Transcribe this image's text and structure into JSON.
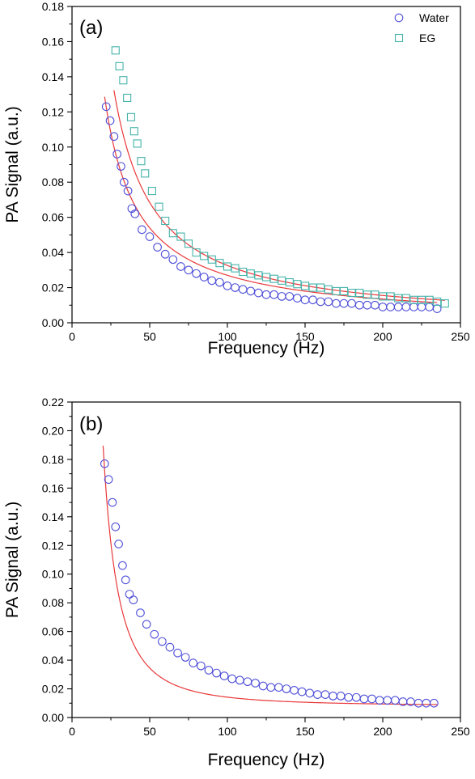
{
  "colors": {
    "water": "#4f4fd8",
    "eg": "#45b3a9",
    "fit": "#e8383a",
    "axis": "#000000"
  },
  "chart_data": [
    {
      "type": "scatter",
      "panel_label": "(a)",
      "xlabel": "Frequency (Hz)",
      "ylabel": "PA Signal (a.u.)",
      "xlim": [
        0,
        250
      ],
      "ylim": [
        0,
        0.18
      ],
      "xticks": [
        "0",
        "50",
        "100",
        "150",
        "200",
        "250"
      ],
      "yticks": [
        "0.00",
        "0.02",
        "0.04",
        "0.06",
        "0.08",
        "0.10",
        "0.12",
        "0.14",
        "0.16",
        "0.18"
      ],
      "grid": false,
      "legend_position": "top-right",
      "series": [
        {
          "name": "Water",
          "marker": "circle",
          "x": [
            22,
            24.5,
            27,
            29,
            31.5,
            33.5,
            36,
            38.5,
            40.5,
            45,
            50,
            55,
            60,
            65,
            70,
            75,
            80,
            85,
            90,
            95,
            100,
            105,
            110,
            115,
            120,
            125,
            130,
            135,
            140,
            145,
            150,
            155,
            160,
            165,
            170,
            175,
            180,
            185,
            190,
            195,
            200,
            205,
            210,
            215,
            220,
            225,
            230,
            235
          ],
          "y": [
            0.123,
            0.115,
            0.106,
            0.096,
            0.089,
            0.08,
            0.075,
            0.065,
            0.062,
            0.053,
            0.049,
            0.043,
            0.039,
            0.036,
            0.032,
            0.03,
            0.028,
            0.026,
            0.024,
            0.023,
            0.021,
            0.02,
            0.019,
            0.018,
            0.017,
            0.016,
            0.016,
            0.015,
            0.015,
            0.014,
            0.013,
            0.013,
            0.012,
            0.012,
            0.011,
            0.011,
            0.011,
            0.01,
            0.01,
            0.01,
            0.009,
            0.009,
            0.009,
            0.009,
            0.009,
            0.009,
            0.009,
            0.008
          ]
        },
        {
          "name": "EG",
          "marker": "square",
          "x": [
            28,
            30.5,
            33,
            35.5,
            38,
            40,
            42,
            44.5,
            47,
            51.5,
            56,
            60,
            65,
            70,
            75,
            80,
            85,
            90,
            95,
            100,
            105,
            110,
            115,
            120,
            125,
            130,
            135,
            140,
            145,
            150,
            155,
            160,
            165,
            170,
            175,
            180,
            185,
            190,
            195,
            200,
            205,
            210,
            215,
            220,
            225,
            230,
            235,
            240
          ],
          "y": [
            0.155,
            0.146,
            0.138,
            0.128,
            0.117,
            0.109,
            0.102,
            0.092,
            0.085,
            0.075,
            0.066,
            0.058,
            0.051,
            0.049,
            0.045,
            0.04,
            0.038,
            0.036,
            0.034,
            0.032,
            0.031,
            0.029,
            0.028,
            0.027,
            0.026,
            0.025,
            0.024,
            0.023,
            0.022,
            0.021,
            0.02,
            0.02,
            0.019,
            0.018,
            0.018,
            0.017,
            0.017,
            0.016,
            0.016,
            0.015,
            0.015,
            0.014,
            0.014,
            0.013,
            0.013,
            0.013,
            0.012,
            0.011
          ]
        }
      ],
      "fits": [
        {
          "x_range": [
            21,
            235
          ],
          "coef_a": 2.7,
          "exponent": 1.0
        },
        {
          "x_range": [
            27,
            240
          ],
          "coef_a": 4.5,
          "exponent": 1.07
        }
      ]
    },
    {
      "type": "scatter",
      "panel_label": "(b)",
      "xlabel": "Frequency (Hz)",
      "ylabel": "PA Signal (a.u.)",
      "xlim": [
        0,
        250
      ],
      "ylim": [
        0,
        0.22
      ],
      "xticks": [
        "0",
        "50",
        "100",
        "150",
        "200",
        "250"
      ],
      "yticks": [
        "0.00",
        "0.02",
        "0.04",
        "0.06",
        "0.08",
        "0.10",
        "0.12",
        "0.14",
        "0.16",
        "0.18",
        "0.20",
        "0.22"
      ],
      "grid": false,
      "legend_position": "none",
      "series": [
        {
          "marker": "circle",
          "x": [
            21,
            23.5,
            26,
            28,
            30,
            32.5,
            34.5,
            37,
            39.5,
            44,
            48,
            53,
            58,
            63,
            68,
            73,
            78,
            83,
            88,
            93,
            98,
            103,
            108,
            113,
            118,
            123,
            128,
            133,
            138,
            143,
            148,
            153,
            158,
            163,
            168,
            173,
            178,
            183,
            188,
            193,
            198,
            203,
            208,
            213,
            218,
            223,
            228,
            233
          ],
          "y": [
            0.177,
            0.166,
            0.15,
            0.133,
            0.121,
            0.106,
            0.096,
            0.086,
            0.082,
            0.073,
            0.065,
            0.058,
            0.053,
            0.049,
            0.045,
            0.042,
            0.038,
            0.036,
            0.033,
            0.031,
            0.029,
            0.027,
            0.026,
            0.025,
            0.024,
            0.022,
            0.021,
            0.021,
            0.02,
            0.019,
            0.018,
            0.017,
            0.016,
            0.016,
            0.015,
            0.015,
            0.014,
            0.014,
            0.013,
            0.013,
            0.012,
            0.012,
            0.012,
            0.011,
            0.011,
            0.01,
            0.01,
            0.01
          ]
        }
      ],
      "fits": [
        {
          "x_range": [
            20,
            235
          ],
          "coef_a": 98.0,
          "exponent": 2.1,
          "offset": 0.008
        }
      ]
    }
  ]
}
